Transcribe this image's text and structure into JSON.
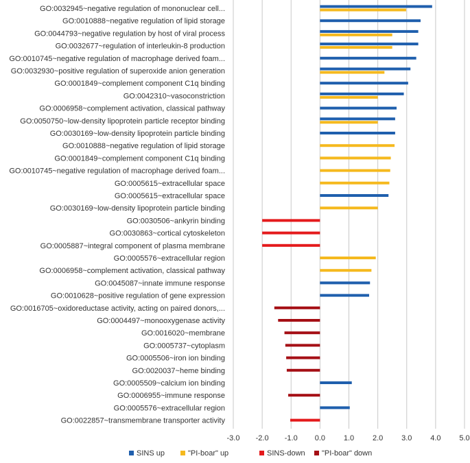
{
  "chart_data": {
    "type": "bar",
    "orientation": "horizontal",
    "xlim": [
      -3.0,
      5.0
    ],
    "x_ticks": [
      "-3.0",
      "-2.0",
      "-1.0",
      "0.0",
      "1.0",
      "2.0",
      "3.0",
      "4.0",
      "5.0"
    ],
    "grid": true,
    "legend_position": "bottom",
    "series": [
      {
        "name": "SINS up",
        "color": "#1f5fad"
      },
      {
        "name": "\"PI-boar\" up",
        "color": "#f5b91e"
      },
      {
        "name": "SINS-down",
        "color": "#e41a1c"
      },
      {
        "name": "\"PI-boar\" down",
        "color": "#a50f15"
      }
    ],
    "categories": [
      {
        "label": "GO:0032945~negative regulation of mononuclear cell...",
        "bars": [
          {
            "series": 0,
            "value": 3.88
          },
          {
            "series": 1,
            "value": 2.98
          }
        ]
      },
      {
        "label": "GO:0010888~negative regulation of lipid storage",
        "bars": [
          {
            "series": 0,
            "value": 3.48
          }
        ]
      },
      {
        "label": "GO:0044793~negative regulation by host of viral process",
        "bars": [
          {
            "series": 0,
            "value": 3.4
          },
          {
            "series": 1,
            "value": 2.5
          }
        ]
      },
      {
        "label": "GO:0032677~regulation of interleukin-8 production",
        "bars": [
          {
            "series": 0,
            "value": 3.4
          },
          {
            "series": 1,
            "value": 2.5
          }
        ]
      },
      {
        "label": "GO:0010745~negative regulation of macrophage derived foam...",
        "bars": [
          {
            "series": 0,
            "value": 3.33
          }
        ]
      },
      {
        "label": "GO:0032930~positive regulation of superoxide anion generation",
        "bars": [
          {
            "series": 0,
            "value": 3.13
          },
          {
            "series": 1,
            "value": 2.23
          }
        ]
      },
      {
        "label": "GO:0001849~complement component C1q binding",
        "bars": [
          {
            "series": 0,
            "value": 3.05
          }
        ]
      },
      {
        "label": "GO:0042310~vasoconstriction",
        "bars": [
          {
            "series": 0,
            "value": 2.9
          },
          {
            "series": 1,
            "value": 2.0
          }
        ]
      },
      {
        "label": "GO:0006958~complement activation, classical pathway",
        "bars": [
          {
            "series": 0,
            "value": 2.65
          }
        ]
      },
      {
        "label": "GO:0050750~low-density lipoprotein particle receptor binding",
        "bars": [
          {
            "series": 0,
            "value": 2.6
          },
          {
            "series": 1,
            "value": 2.0
          }
        ]
      },
      {
        "label": "GO:0030169~low-density lipoprotein particle binding",
        "bars": [
          {
            "series": 0,
            "value": 2.6
          }
        ]
      },
      {
        "label": "GO:0010888~negative regulation of lipid storage",
        "bars": [
          {
            "series": 1,
            "value": 2.58
          }
        ]
      },
      {
        "label": "GO:0001849~complement component C1q binding",
        "bars": [
          {
            "series": 1,
            "value": 2.45
          }
        ]
      },
      {
        "label": "GO:0010745~negative regulation of macrophage derived foam...",
        "bars": [
          {
            "series": 1,
            "value": 2.43
          }
        ]
      },
      {
        "label": "GO:0005615~extracellular space",
        "bars": [
          {
            "series": 1,
            "value": 2.4
          }
        ]
      },
      {
        "label": "GO:0005615~extracellular space",
        "bars": [
          {
            "series": 0,
            "value": 2.37
          }
        ]
      },
      {
        "label": "GO:0030169~low-density lipoprotein particle binding",
        "bars": [
          {
            "series": 1,
            "value": 2.0
          }
        ]
      },
      {
        "label": "GO:0030506~ankyrin binding",
        "bars": [
          {
            "series": 2,
            "value": -2.0
          }
        ]
      },
      {
        "label": "GO:0030863~cortical cytoskeleton",
        "bars": [
          {
            "series": 2,
            "value": -2.0
          }
        ]
      },
      {
        "label": "GO:0005887~integral component of plasma membrane",
        "bars": [
          {
            "series": 2,
            "value": -2.0
          }
        ]
      },
      {
        "label": "GO:0005576~extracellular region",
        "bars": [
          {
            "series": 1,
            "value": 1.93
          }
        ]
      },
      {
        "label": "GO:0006958~complement activation, classical pathway",
        "bars": [
          {
            "series": 1,
            "value": 1.78
          }
        ]
      },
      {
        "label": "GO:0045087~innate immune response",
        "bars": [
          {
            "series": 0,
            "value": 1.73
          }
        ]
      },
      {
        "label": "GO:0010628~positive regulation of gene expression",
        "bars": [
          {
            "series": 0,
            "value": 1.7
          }
        ]
      },
      {
        "label": "GO:0016705~oxidoreductase activity, acting on paired donors,...",
        "bars": [
          {
            "series": 3,
            "value": -1.58
          }
        ]
      },
      {
        "label": "GO:0004497~monooxygenase activity",
        "bars": [
          {
            "series": 3,
            "value": -1.45
          }
        ]
      },
      {
        "label": "GO:0016020~membrane",
        "bars": [
          {
            "series": 3,
            "value": -1.23
          }
        ]
      },
      {
        "label": "GO:0005737~cytoplasm",
        "bars": [
          {
            "series": 3,
            "value": -1.2
          }
        ]
      },
      {
        "label": "GO:0005506~iron ion binding",
        "bars": [
          {
            "series": 3,
            "value": -1.17
          }
        ]
      },
      {
        "label": "GO:0020037~heme binding",
        "bars": [
          {
            "series": 3,
            "value": -1.15
          }
        ]
      },
      {
        "label": "GO:0005509~calcium ion binding",
        "bars": [
          {
            "series": 0,
            "value": 1.1
          }
        ]
      },
      {
        "label": "GO:0006955~immune response",
        "bars": [
          {
            "series": 3,
            "value": -1.1
          }
        ]
      },
      {
        "label": "GO:0005576~extracellular region",
        "bars": [
          {
            "series": 0,
            "value": 1.03
          }
        ]
      },
      {
        "label": "GO:0022857~transmembrane transporter activity",
        "bars": [
          {
            "series": 2,
            "value": -1.03
          }
        ]
      }
    ]
  }
}
